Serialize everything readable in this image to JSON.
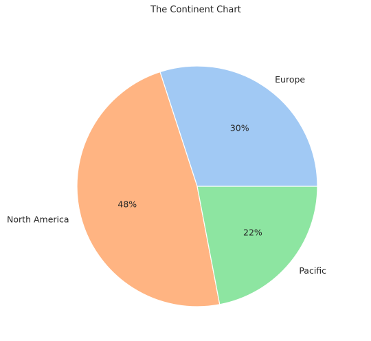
{
  "chart_data": {
    "type": "pie",
    "title": "The Continent Chart",
    "slices": [
      {
        "label": "Europe",
        "value": 30,
        "pct_text": "30%",
        "color": "#a1c9f4"
      },
      {
        "label": "North America",
        "value": 48,
        "pct_text": "48%",
        "color": "#ffb482"
      },
      {
        "label": "Pacific",
        "value": 22,
        "pct_text": "22%",
        "color": "#8de5a1"
      }
    ],
    "start_angle_deg": 0,
    "direction": "counterclockwise",
    "slice_edge_color": "#ffffff"
  }
}
